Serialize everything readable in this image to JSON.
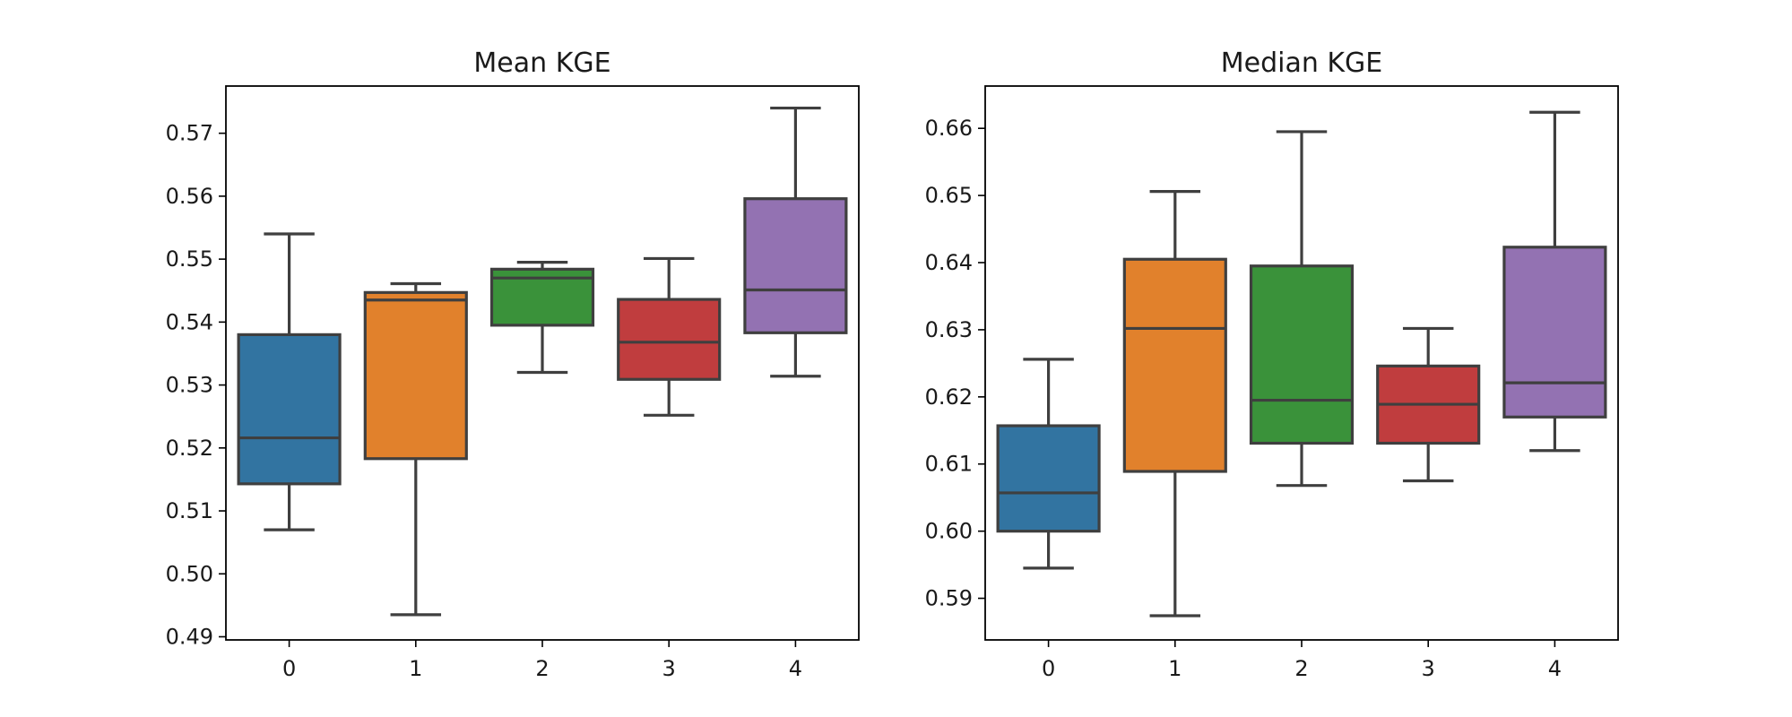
{
  "chart_data": [
    {
      "type": "box",
      "title": "Mean KGE",
      "xlabel": "",
      "ylabel": "",
      "categories": [
        "0",
        "1",
        "2",
        "3",
        "4"
      ],
      "ylim": [
        0.4895,
        0.5775
      ],
      "yticks": [
        0.49,
        0.5,
        0.51,
        0.52,
        0.53,
        0.54,
        0.55,
        0.56,
        0.57
      ],
      "ytick_labels": [
        "0.49",
        "0.50",
        "0.51",
        "0.52",
        "0.53",
        "0.54",
        "0.55",
        "0.56",
        "0.57"
      ],
      "boxes": [
        {
          "min": 0.507,
          "q1": 0.5143,
          "median": 0.5216,
          "q3": 0.538,
          "max": 0.554,
          "color": "#3274a1"
        },
        {
          "min": 0.4935,
          "q1": 0.5183,
          "median": 0.5435,
          "q3": 0.5447,
          "max": 0.5461,
          "color": "#e1812c"
        },
        {
          "min": 0.532,
          "q1": 0.5395,
          "median": 0.547,
          "q3": 0.5484,
          "max": 0.5495,
          "color": "#3a923a"
        },
        {
          "min": 0.5252,
          "q1": 0.5309,
          "median": 0.5368,
          "q3": 0.5436,
          "max": 0.5501,
          "color": "#c03d3e"
        },
        {
          "min": 0.5314,
          "q1": 0.5383,
          "median": 0.5451,
          "q3": 0.5596,
          "max": 0.574,
          "color": "#9372b2"
        }
      ],
      "grid": false
    },
    {
      "type": "box",
      "title": "Median KGE",
      "xlabel": "",
      "ylabel": "",
      "categories": [
        "0",
        "1",
        "2",
        "3",
        "4"
      ],
      "ylim": [
        0.5838,
        0.6663
      ],
      "yticks": [
        0.59,
        0.6,
        0.61,
        0.62,
        0.63,
        0.64,
        0.65,
        0.66
      ],
      "ytick_labels": [
        "0.59",
        "0.60",
        "0.61",
        "0.62",
        "0.63",
        "0.64",
        "0.65",
        "0.66"
      ],
      "boxes": [
        {
          "min": 0.5945,
          "q1": 0.6,
          "median": 0.6057,
          "q3": 0.6157,
          "max": 0.6256,
          "color": "#3274a1"
        },
        {
          "min": 0.5874,
          "q1": 0.6089,
          "median": 0.6302,
          "q3": 0.6405,
          "max": 0.6506,
          "color": "#e1812c"
        },
        {
          "min": 0.6068,
          "q1": 0.6131,
          "median": 0.6195,
          "q3": 0.6395,
          "max": 0.6595,
          "color": "#3a923a"
        },
        {
          "min": 0.6075,
          "q1": 0.6131,
          "median": 0.6189,
          "q3": 0.6246,
          "max": 0.6302,
          "color": "#c03d3e"
        },
        {
          "min": 0.612,
          "q1": 0.617,
          "median": 0.6221,
          "q3": 0.6423,
          "max": 0.6624,
          "color": "#9372b2"
        }
      ],
      "grid": false
    }
  ]
}
